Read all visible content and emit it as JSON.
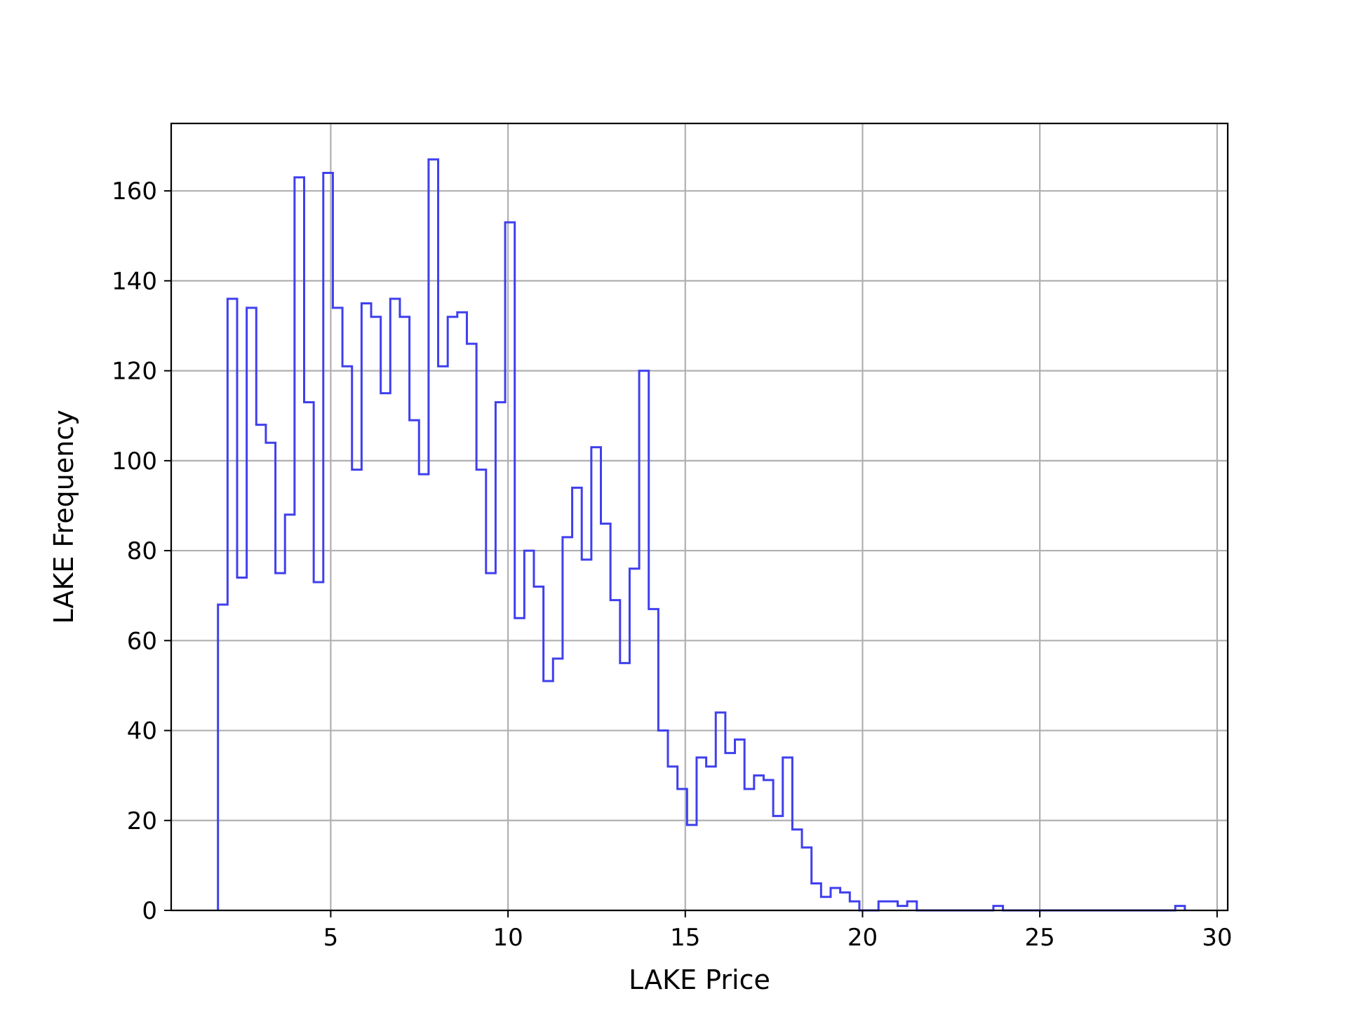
{
  "chart_data": {
    "type": "histogram-step",
    "title": "",
    "xlabel": "LAKE Price",
    "ylabel": "LAKE Frequency",
    "xlim": [
      0.5,
      30.3
    ],
    "ylim": [
      0,
      175
    ],
    "grid": true,
    "color": "#3f3fee",
    "x_ticks": [
      5,
      10,
      15,
      20,
      25,
      30
    ],
    "x_tick_labels": [
      "5",
      "10",
      "15",
      "20",
      "25",
      "30"
    ],
    "y_ticks": [
      0,
      20,
      40,
      60,
      80,
      100,
      120,
      140,
      160
    ],
    "y_tick_labels": [
      "0",
      "20",
      "40",
      "60",
      "80",
      "100",
      "120",
      "140",
      "160"
    ],
    "bin_edges": [
      1.82,
      2.09,
      2.36,
      2.63,
      2.9,
      3.17,
      3.44,
      3.71,
      3.98,
      4.25,
      4.52,
      4.79,
      5.06,
      5.33,
      5.6,
      5.87,
      6.14,
      6.41,
      6.68,
      6.95,
      7.22,
      7.49,
      7.76,
      8.03,
      8.3,
      8.57,
      8.84,
      9.11,
      9.38,
      9.65,
      9.92,
      10.19,
      10.46,
      10.73,
      11.0,
      11.27,
      11.54,
      11.81,
      12.08,
      12.35,
      12.62,
      12.89,
      13.16,
      13.43,
      13.7,
      13.97,
      14.24,
      14.51,
      14.78,
      15.05,
      15.32,
      15.59,
      15.86,
      16.13,
      16.4,
      16.67,
      16.94,
      17.21,
      17.48,
      17.75,
      18.02,
      18.29,
      18.56,
      18.83,
      19.1,
      19.37,
      19.64,
      19.91,
      20.18,
      20.45,
      20.72,
      20.99,
      21.26,
      21.53,
      21.8,
      22.07,
      22.34,
      22.61,
      22.88,
      23.15,
      23.42,
      23.69,
      23.96,
      24.23,
      24.5,
      24.77,
      25.04,
      25.31,
      25.58,
      25.85,
      26.12,
      26.39,
      26.66,
      26.93,
      27.2,
      27.47,
      27.74,
      28.01,
      28.28,
      28.55,
      28.82,
      29.09
    ],
    "counts": [
      68,
      136,
      74,
      134,
      108,
      104,
      75,
      88,
      163,
      113,
      73,
      164,
      134,
      121,
      98,
      135,
      132,
      115,
      136,
      132,
      109,
      97,
      167,
      121,
      132,
      133,
      126,
      98,
      75,
      113,
      153,
      65,
      80,
      72,
      51,
      56,
      83,
      94,
      78,
      103,
      86,
      69,
      55,
      76,
      120,
      67,
      40,
      32,
      27,
      19,
      34,
      32,
      44,
      35,
      38,
      27,
      30,
      29,
      21,
      34,
      18,
      14,
      6,
      3,
      5,
      4,
      2,
      0,
      0,
      2,
      2,
      1,
      2,
      0,
      0,
      0,
      0,
      0,
      0,
      0,
      0,
      1,
      0,
      0,
      0,
      0,
      0,
      0,
      0,
      0,
      0,
      0,
      0,
      0,
      0,
      0,
      0,
      0,
      0,
      0,
      1
    ]
  }
}
